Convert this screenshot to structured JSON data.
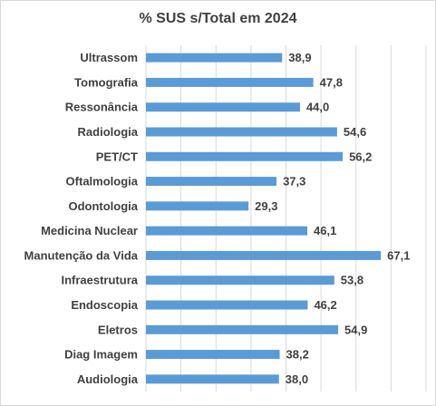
{
  "chart_data": {
    "type": "bar",
    "orientation": "horizontal",
    "title": "% SUS s/Total em 2024",
    "categories": [
      "Ultrassom",
      "Tomografia",
      "Ressonância",
      "Radiologia",
      "PET/CT",
      "Oftalmologia",
      "Odontologia",
      "Medicina Nuclear",
      "Manutenção da Vida",
      "Infraestrutura",
      "Endoscopia",
      "Eletros",
      "Diag Imagem",
      "Audiologia"
    ],
    "values": [
      38.9,
      47.8,
      44.0,
      54.6,
      56.2,
      37.3,
      29.3,
      46.1,
      67.1,
      53.8,
      46.2,
      54.9,
      38.2,
      38.0
    ],
    "value_labels": [
      "38,9",
      "47,8",
      "44,0",
      "54,6",
      "56,2",
      "37,3",
      "29,3",
      "46,1",
      "67,1",
      "53,8",
      "46,2",
      "54,9",
      "38,2",
      "38,0"
    ],
    "xlim": [
      0,
      80
    ],
    "grid": true,
    "legend": "none",
    "bar_color": "#5b9bd5",
    "grid_color": "#d9d9d9"
  }
}
